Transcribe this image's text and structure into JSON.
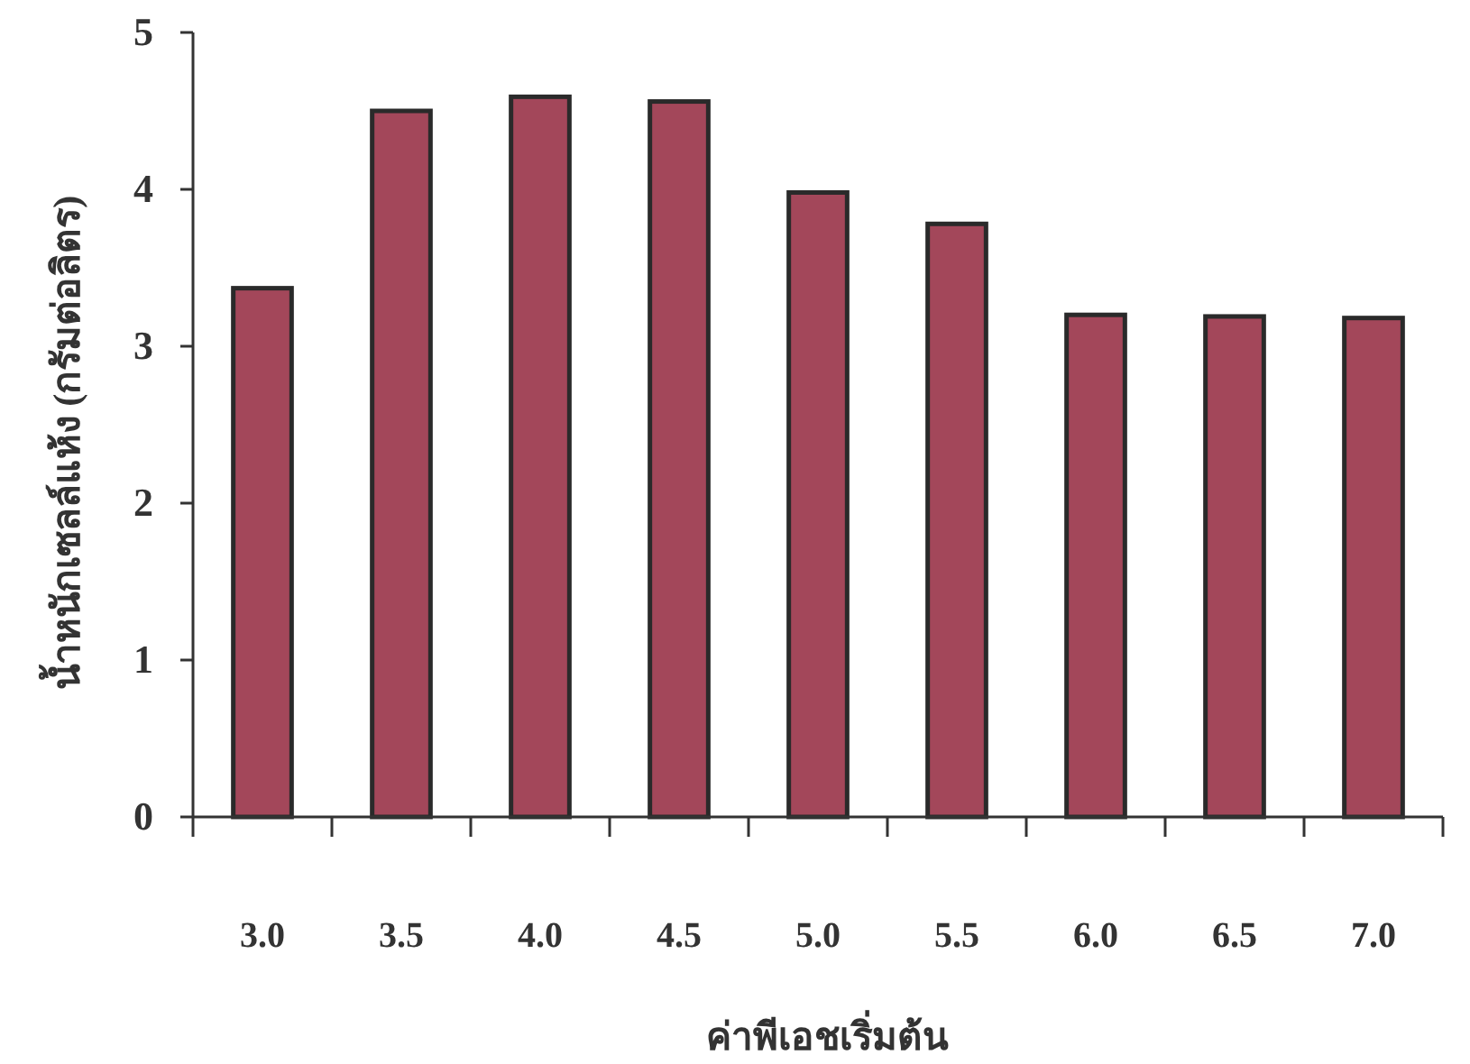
{
  "chart_data": {
    "type": "bar",
    "xlabel": "ค่าพีเอชเริ่มต้น",
    "ylabel": "น้ำหนักเซลล์แห้ง (กรัมต่อลิตร)",
    "categories": [
      "3.0",
      "3.5",
      "4.0",
      "4.5",
      "5.0",
      "5.5",
      "6.0",
      "6.5",
      "7.0"
    ],
    "series": [
      {
        "color": "#a3475a",
        "values": [
          3.37,
          4.5,
          4.59,
          4.56,
          3.98,
          3.78,
          3.2,
          3.19,
          3.18
        ]
      }
    ],
    "ylim": [
      0,
      5
    ],
    "yticks": [
      0,
      1,
      2,
      3,
      4,
      5
    ]
  }
}
